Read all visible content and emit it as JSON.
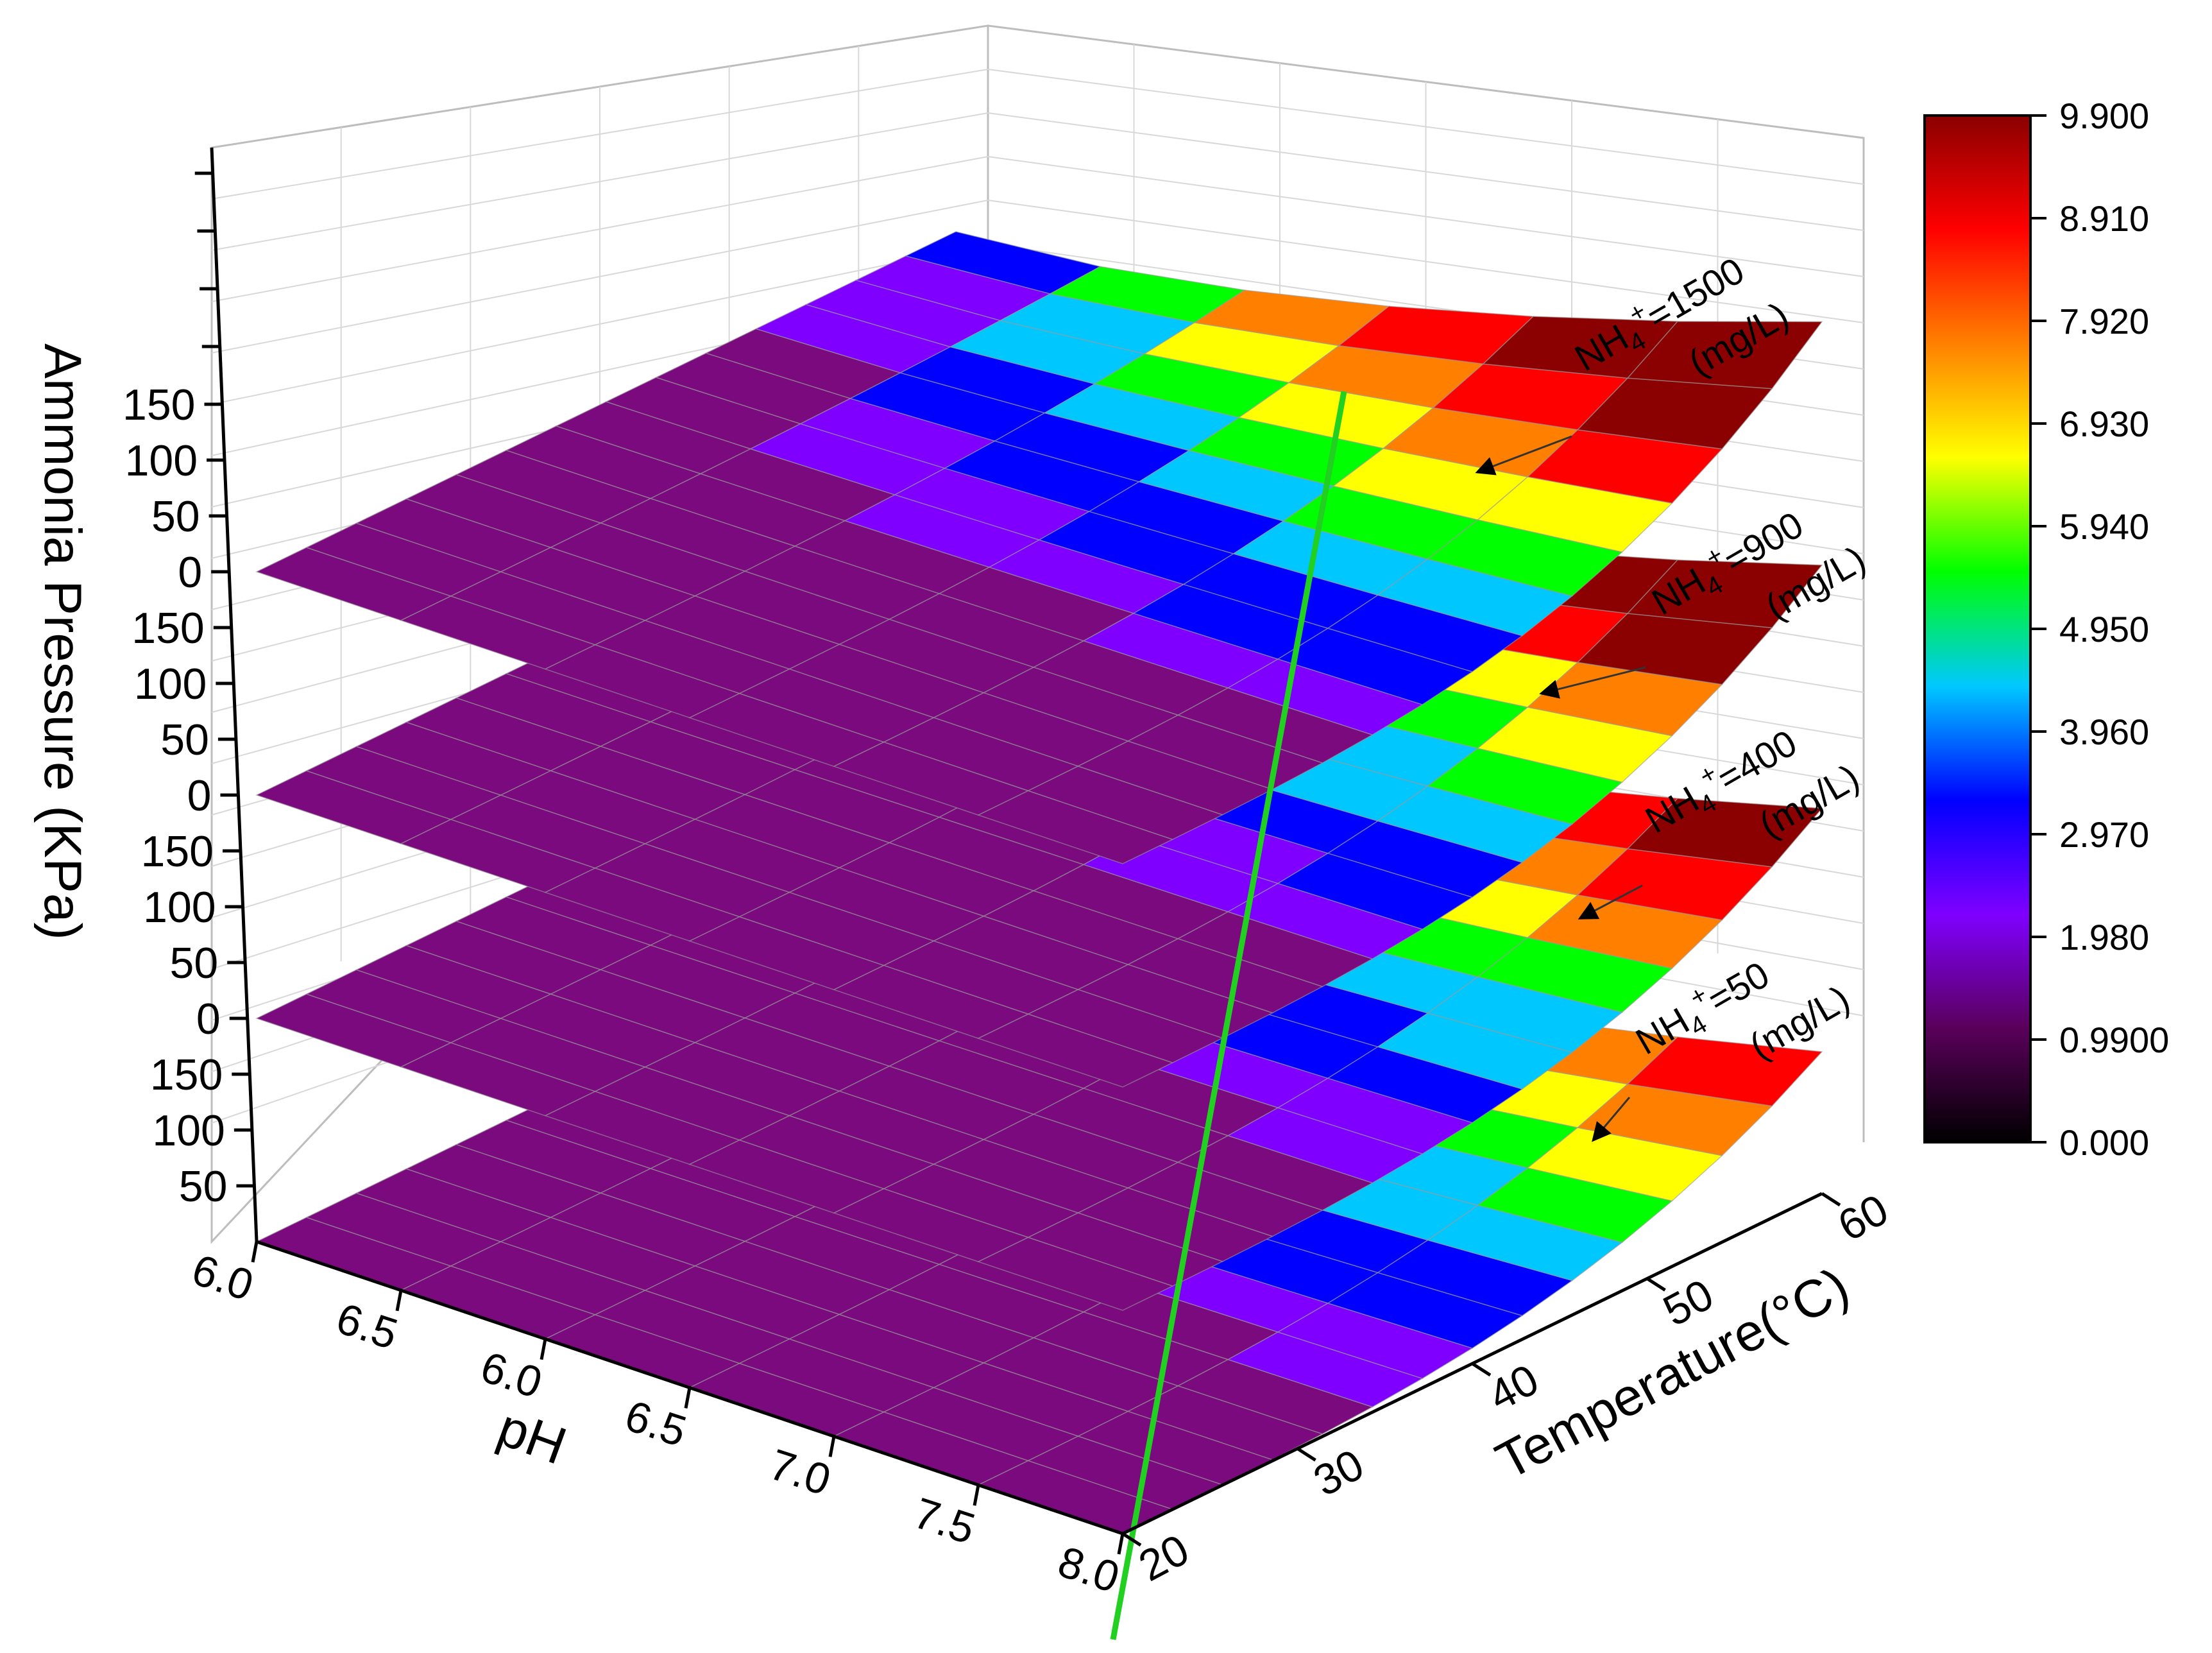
{
  "chart_data": {
    "type": "surface3d-stacked",
    "title": "",
    "zlabel": "Ammonia Pressure (KPa)",
    "xlabel": "pH",
    "ylabel": "Temperature(°C)",
    "x_ticks": [
      "6.0",
      "6.5",
      "6.0",
      "6.5",
      "7.0",
      "7.5",
      "8.0"
    ],
    "y_ticks": [
      "20",
      "30",
      "40",
      "50",
      "60"
    ],
    "z_ticks": [
      "50",
      "100",
      "150",
      "0"
    ],
    "x_range": [
      6.0,
      8.0
    ],
    "y_range": [
      20,
      60
    ],
    "colorbar": {
      "ticks": [
        "9.900",
        "8.910",
        "7.920",
        "6.930",
        "5.940",
        "4.950",
        "3.960",
        "2.970",
        "1.980",
        "0.9900",
        "0.000"
      ],
      "range": [
        0.0,
        9.9
      ],
      "colors": [
        "#000000",
        "#5a005a",
        "#7f00ff",
        "#0000ff",
        "#00c8ff",
        "#00ff00",
        "#ffff00",
        "#ff8000",
        "#ff0000",
        "#8b0000"
      ]
    },
    "layers": [
      {
        "annot_line1": "NH",
        "annot_sub": "4",
        "annot_sup": "+",
        "annot_value": "=50",
        "annot_unit": "(mg/L)"
      },
      {
        "annot_line1": "NH",
        "annot_sub": "4",
        "annot_sup": "+",
        "annot_value": "=400",
        "annot_unit": "(mg/L)"
      },
      {
        "annot_line1": "NH",
        "annot_sub": "4",
        "annot_sup": "+",
        "annot_value": "=900",
        "annot_unit": "(mg/L)"
      },
      {
        "annot_line1": "NH",
        "annot_sub": "4",
        "annot_sup": "+",
        "annot_value": "=1500",
        "annot_unit": "(mg/L)"
      }
    ],
    "reference_line_color": "#22d022",
    "grid": true
  }
}
